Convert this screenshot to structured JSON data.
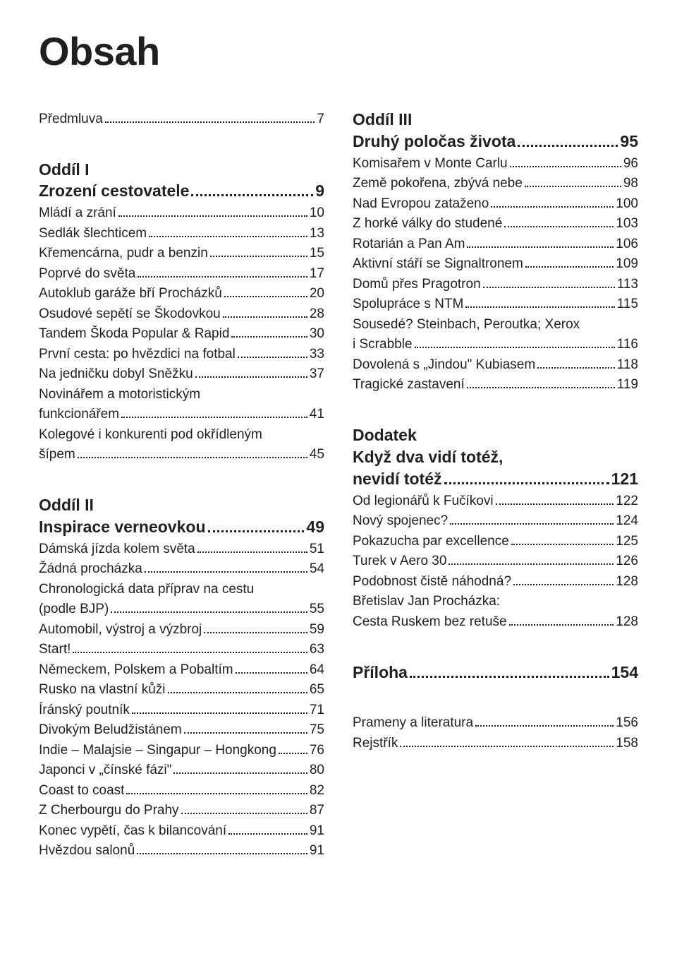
{
  "title": "Obsah",
  "left": {
    "preface": {
      "label": "Předmluva",
      "page": "7"
    },
    "section1": {
      "label": "Oddíl I",
      "title": "Zrození cestovatele",
      "page": "9",
      "entries": [
        {
          "label": "Mládí a zrání",
          "page": "10"
        },
        {
          "label": "Sedlák šlechticem",
          "page": "13"
        },
        {
          "label": "Křemencárna, pudr a benzin",
          "page": "15"
        },
        {
          "label": "Poprvé do světa",
          "page": "17"
        },
        {
          "label": "Autoklub garáže bří Procházků",
          "page": "20"
        },
        {
          "label": "Osudové sepětí se Škodovkou",
          "page": "28"
        },
        {
          "label": "Tandem Škoda Popular & Rapid",
          "page": "30"
        },
        {
          "label": "První cesta: po hvězdici na fotbal",
          "page": "33"
        },
        {
          "label": "Na jedničku dobyl Sněžku",
          "page": "37"
        },
        {
          "cont": "Novinářem a motoristickým",
          "label": "funkcionářem",
          "page": "41"
        },
        {
          "cont": "Kolegové i konkurenti pod okřídleným",
          "label": "šípem",
          "page": "45"
        }
      ]
    },
    "section2": {
      "label": "Oddíl II",
      "title": "Inspirace verneovkou",
      "page": "49",
      "entries": [
        {
          "label": "Dámská jízda kolem světa",
          "page": "51"
        },
        {
          "label": "Žádná procházka",
          "page": "54"
        },
        {
          "cont": "Chronologická data příprav na cestu",
          "label": "(podle BJP)",
          "page": "55"
        },
        {
          "label": "Automobil, výstroj a výzbroj",
          "page": "59"
        },
        {
          "label": "Start!",
          "page": "63"
        },
        {
          "label": "Německem, Polskem a Pobaltím",
          "page": "64"
        },
        {
          "label": "Rusko na vlastní kůži",
          "page": "65"
        },
        {
          "label": "Íránský poutník",
          "page": "71"
        },
        {
          "label": "Divokým Beludžistánem",
          "page": "75"
        },
        {
          "label": "Indie – Malajsie – Singapur – Hongkong",
          "page": "76"
        },
        {
          "label": "Japonci v „čínské fázi\"",
          "page": "80"
        },
        {
          "label": "Coast to coast",
          "page": "82"
        },
        {
          "label": "Z Cherbourgu do Prahy",
          "page": "87"
        },
        {
          "label": "Konec vypětí, čas k bilancování",
          "page": "91"
        },
        {
          "label": "Hvězdou salonů",
          "page": "91"
        }
      ]
    }
  },
  "right": {
    "section3": {
      "label": "Oddíl III",
      "title": "Druhý poločas života",
      "page": "95",
      "entries": [
        {
          "label": "Komisařem v Monte Carlu",
          "page": "96"
        },
        {
          "label": "Země pokořena, zbývá nebe",
          "page": "98"
        },
        {
          "label": "Nad Evropou zataženo",
          "page": "100"
        },
        {
          "label": "Z horké války do studené",
          "page": "103"
        },
        {
          "label": "Rotarián a Pan Am",
          "page": "106"
        },
        {
          "label": "Aktivní stáří se Signaltronem",
          "page": "109"
        },
        {
          "label": "Domů přes Pragotron",
          "page": "113"
        },
        {
          "label": "Spolupráce s NTM",
          "page": "115"
        },
        {
          "cont": "Sousedé? Steinbach, Peroutka; Xerox",
          "label": "i Scrabble",
          "page": "116"
        },
        {
          "label": "Dovolená s „Jindou\" Kubiasem",
          "page": "118"
        },
        {
          "label": "Tragické zastavení",
          "page": "119"
        }
      ]
    },
    "appendix": {
      "label": "Dodatek",
      "title_line1": "Když dva vidí totéž,",
      "title_line2": "nevidí totéž",
      "page": "121",
      "entries": [
        {
          "label": "Od legionářů k Fučíkovi",
          "page": "122"
        },
        {
          "label": "Nový spojenec?",
          "page": "124"
        },
        {
          "label": "Pokazucha par excellence",
          "page": "125"
        },
        {
          "label": "Turek v Aero 30",
          "page": "126"
        },
        {
          "label": "Podobnost čistě náhodná?",
          "page": "128"
        },
        {
          "cont": "Břetislav Jan Procházka:",
          "label": "Cesta Ruskem bez retuše",
          "page": "128"
        }
      ]
    },
    "attachment": {
      "title": "Příloha",
      "page": "154"
    },
    "tail": [
      {
        "label": "Prameny a literatura",
        "page": "156"
      },
      {
        "label": "Rejstřík",
        "page": "158"
      }
    ]
  }
}
